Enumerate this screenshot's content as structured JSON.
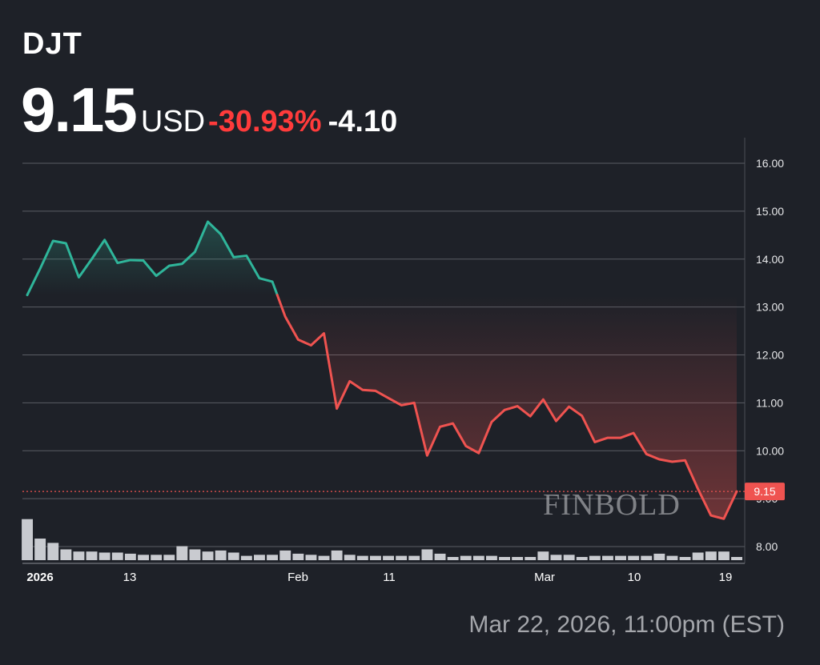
{
  "header": {
    "ticker": "DJT",
    "price": "9.15",
    "currency": "USD",
    "change_pct": "-30.93%",
    "change_abs": "-4.10"
  },
  "timestamp": "Mar 22, 2026, 11:00pm (EST)",
  "watermark": "FINBOLD",
  "colors": {
    "background": "#1e2128",
    "up": "#2fb59a",
    "down": "#ef5350",
    "current_price_label_bg": "#ef5350",
    "grid": "#5a5d64",
    "volume": "#c9cbd0"
  },
  "chart_data": {
    "type": "line",
    "ylim": [
      7.8,
      16.4
    ],
    "yticks": [
      8.0,
      9.0,
      10.0,
      11.0,
      12.0,
      13.0,
      14.0,
      15.0,
      16.0
    ],
    "ytick_labels": [
      "8.00",
      "9.00",
      "10.00",
      "11.00",
      "12.00",
      "13.00",
      "14.00",
      "15.00",
      "16.00"
    ],
    "y_axis_side": "right",
    "grid": true,
    "x_tick_labels": [
      "2026",
      "13",
      "Feb",
      "11",
      "Mar",
      "10",
      "19"
    ],
    "current_price": 9.15,
    "current_price_label": "9.15",
    "previous_close": 13.25,
    "series": [
      {
        "values": [
          13.25,
          13.8,
          14.38,
          14.33,
          13.62,
          14.0,
          14.4,
          13.92,
          13.98,
          13.97,
          13.65,
          13.86,
          13.9,
          14.15,
          14.78,
          14.52,
          14.04,
          14.07,
          13.6,
          13.53,
          12.8,
          12.32,
          12.2,
          12.45,
          10.88,
          11.45,
          11.27,
          11.25,
          11.1,
          10.95,
          11.0,
          9.9,
          10.5,
          10.57,
          10.1,
          9.95,
          10.6,
          10.85,
          10.93,
          10.72,
          11.07,
          10.62,
          10.92,
          10.73,
          10.18,
          10.27,
          10.27,
          10.37,
          9.93,
          9.82,
          9.77,
          9.8,
          9.2,
          8.65,
          8.58,
          9.15
        ]
      }
    ],
    "volume": [
      3.8,
      2.0,
      1.6,
      1.0,
      0.8,
      0.8,
      0.7,
      0.7,
      0.6,
      0.5,
      0.5,
      0.5,
      1.3,
      1.0,
      0.8,
      0.9,
      0.7,
      0.4,
      0.5,
      0.5,
      0.9,
      0.6,
      0.5,
      0.4,
      0.9,
      0.5,
      0.4,
      0.4,
      0.4,
      0.4,
      0.4,
      1.0,
      0.6,
      0.3,
      0.4,
      0.4,
      0.4,
      0.3,
      0.3,
      0.3,
      0.8,
      0.5,
      0.5,
      0.3,
      0.4,
      0.4,
      0.4,
      0.4,
      0.4,
      0.6,
      0.4,
      0.3,
      0.7,
      0.8,
      0.8,
      0.3
    ]
  }
}
